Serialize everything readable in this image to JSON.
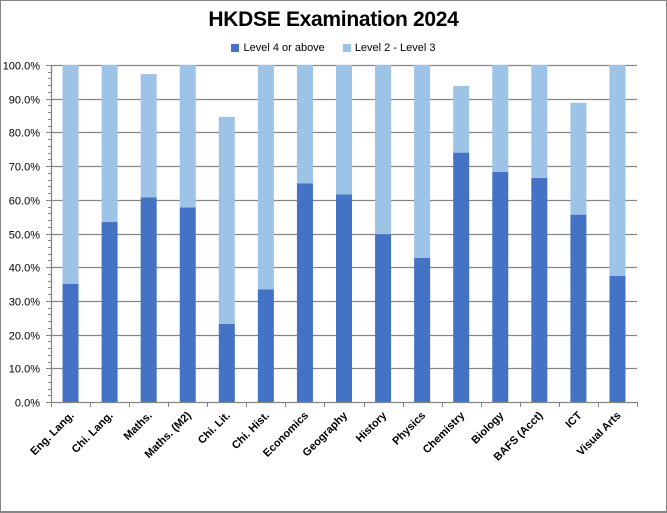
{
  "chart_data": {
    "type": "bar",
    "stacked": true,
    "title": "HKDSE Examination 2024",
    "xlabel": "",
    "ylabel": "",
    "ylim": [
      0,
      100
    ],
    "y_tick_labels": [
      "0.0%",
      "10.0%",
      "20.0%",
      "30.0%",
      "40.0%",
      "50.0%",
      "60.0%",
      "70.0%",
      "80.0%",
      "90.0%",
      "100.0%"
    ],
    "grid": true,
    "legend_position": "top",
    "categories": [
      "Eng. Lang.",
      "Chi. Lang.",
      "Maths.",
      "Maths. (M2)",
      "Chi. Lit.",
      "Chi. Hist.",
      "Economics",
      "Geography",
      "History",
      "Physics",
      "Chemistry",
      "Biology",
      "BAFS (Acct)",
      "ICT",
      "Visual Arts"
    ],
    "series": [
      {
        "name": "Level 4 or above",
        "color": "#4472C4",
        "values": [
          35.1,
          53.4,
          60.7,
          57.7,
          23.2,
          33.4,
          64.9,
          61.6,
          49.8,
          42.8,
          74.0,
          68.3,
          66.5,
          55.6,
          37.4
        ]
      },
      {
        "name": "Level 2 - Level 3",
        "color": "#9DC3E6",
        "values": [
          64.9,
          46.6,
          36.6,
          42.3,
          61.4,
          66.6,
          35.1,
          38.4,
          50.2,
          57.2,
          19.8,
          31.7,
          33.5,
          33.2,
          62.6
        ]
      }
    ]
  },
  "legend": {
    "items": [
      {
        "label": "Level 4 or above",
        "color": "#4472C4"
      },
      {
        "label": "Level 2 - Level 3",
        "color": "#9DC3E6"
      }
    ]
  },
  "colors": {
    "gridline": "#868686",
    "axis_text": "#000000"
  }
}
